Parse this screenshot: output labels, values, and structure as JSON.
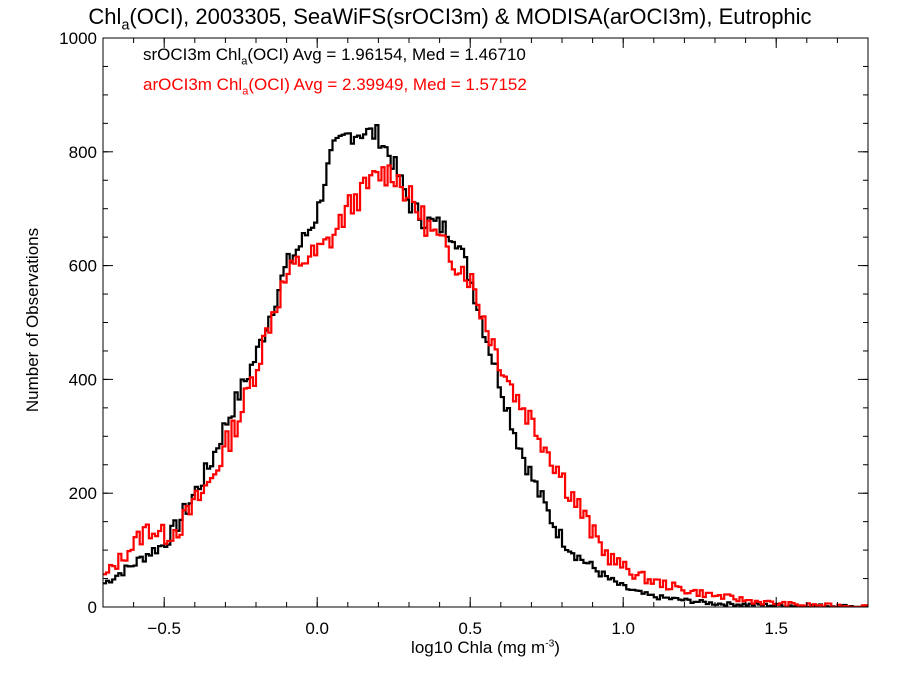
{
  "chart_data": {
    "type": "line",
    "title": {
      "prefix": "Chl",
      "sub": "a",
      "suffix": "(OCI), 2003305, SeaWiFS(srOCI3m) & MODISA(arOCI3m), Eutrophic"
    },
    "xlabel": {
      "text": "log10 Chla (mg m",
      "sup": "-3",
      "close": ")"
    },
    "ylabel": "Number of Observations",
    "xlim": [
      -0.7,
      1.8
    ],
    "ylim": [
      0,
      1000
    ],
    "xticks": [
      -0.5,
      0.0,
      0.5,
      1.0,
      1.5
    ],
    "xtick_labels": [
      "−0.5",
      "0.0",
      "0.5",
      "1.0",
      "1.5"
    ],
    "yticks": [
      0,
      200,
      400,
      600,
      800,
      1000
    ],
    "ytick_labels": [
      "0",
      "200",
      "400",
      "600",
      "800",
      "1000"
    ],
    "grid": false,
    "legend_placement": "top-left",
    "bin_width": 0.01,
    "series": [
      {
        "name_prefix": "srOCI3m Chl",
        "name_sub": "a",
        "name_suffix": "(OCI) Avg = 1.96154, Med = 1.46710",
        "color": "#000000",
        "knots": [
          [
            -0.7,
            40
          ],
          [
            -0.6,
            75
          ],
          [
            -0.55,
            95
          ],
          [
            -0.5,
            110
          ],
          [
            -0.45,
            150
          ],
          [
            -0.4,
            200
          ],
          [
            -0.35,
            250
          ],
          [
            -0.3,
            320
          ],
          [
            -0.25,
            380
          ],
          [
            -0.2,
            440
          ],
          [
            -0.15,
            520
          ],
          [
            -0.1,
            600
          ],
          [
            -0.05,
            640
          ],
          [
            0.0,
            690
          ],
          [
            0.02,
            740
          ],
          [
            0.05,
            800
          ],
          [
            0.1,
            830
          ],
          [
            0.15,
            835
          ],
          [
            0.2,
            830
          ],
          [
            0.25,
            780
          ],
          [
            0.3,
            710
          ],
          [
            0.35,
            680
          ],
          [
            0.4,
            670
          ],
          [
            0.45,
            655
          ],
          [
            0.5,
            580
          ],
          [
            0.55,
            480
          ],
          [
            0.6,
            390
          ],
          [
            0.65,
            300
          ],
          [
            0.7,
            230
          ],
          [
            0.75,
            170
          ],
          [
            0.8,
            120
          ],
          [
            0.85,
            90
          ],
          [
            0.9,
            70
          ],
          [
            0.95,
            50
          ],
          [
            1.0,
            35
          ],
          [
            1.05,
            25
          ],
          [
            1.1,
            18
          ],
          [
            1.2,
            12
          ],
          [
            1.3,
            6
          ],
          [
            1.5,
            3
          ],
          [
            1.8,
            1
          ]
        ],
        "noise_amp": 18,
        "seed": 7
      },
      {
        "name_prefix": "arOCI3m Chl",
        "name_sub": "a",
        "name_suffix": "(OCI) Avg = 2.39949, Med = 1.57152",
        "color": "#ff0000",
        "knots": [
          [
            -0.7,
            50
          ],
          [
            -0.65,
            80
          ],
          [
            -0.6,
            110
          ],
          [
            -0.55,
            140
          ],
          [
            -0.5,
            125
          ],
          [
            -0.45,
            140
          ],
          [
            -0.4,
            180
          ],
          [
            -0.35,
            220
          ],
          [
            -0.3,
            280
          ],
          [
            -0.25,
            340
          ],
          [
            -0.2,
            420
          ],
          [
            -0.15,
            510
          ],
          [
            -0.1,
            580
          ],
          [
            -0.05,
            610
          ],
          [
            0.0,
            620
          ],
          [
            0.05,
            650
          ],
          [
            0.1,
            700
          ],
          [
            0.15,
            730
          ],
          [
            0.2,
            760
          ],
          [
            0.25,
            765
          ],
          [
            0.3,
            720
          ],
          [
            0.35,
            680
          ],
          [
            0.4,
            640
          ],
          [
            0.45,
            610
          ],
          [
            0.5,
            580
          ],
          [
            0.55,
            500
          ],
          [
            0.6,
            430
          ],
          [
            0.65,
            370
          ],
          [
            0.7,
            330
          ],
          [
            0.75,
            280
          ],
          [
            0.8,
            230
          ],
          [
            0.85,
            180
          ],
          [
            0.9,
            130
          ],
          [
            0.95,
            90
          ],
          [
            1.0,
            70
          ],
          [
            1.05,
            55
          ],
          [
            1.1,
            45
          ],
          [
            1.2,
            30
          ],
          [
            1.3,
            20
          ],
          [
            1.4,
            12
          ],
          [
            1.5,
            6
          ],
          [
            1.6,
            3
          ],
          [
            1.8,
            1
          ]
        ],
        "noise_amp": 24,
        "seed": 13
      }
    ]
  }
}
